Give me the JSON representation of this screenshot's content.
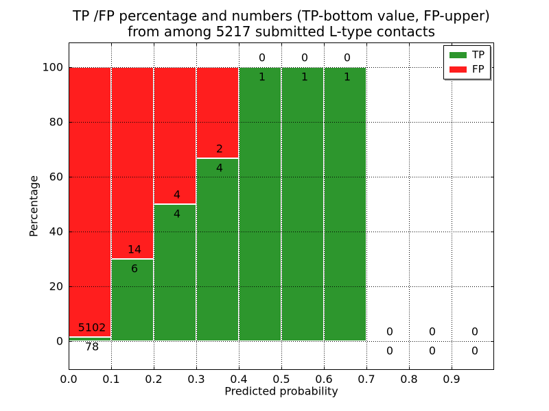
{
  "chart_data": {
    "type": "bar",
    "title_line1": "TP /FP percentage and numbers (TP-bottom value, FP-upper)",
    "title_line2": "from among 5217 submitted L-type contacts",
    "xlabel": "Predicted probability",
    "ylabel": "Percentage",
    "total_contacts": 5217,
    "xlim": [
      0.0,
      1.0
    ],
    "ylim": [
      -10.5,
      109
    ],
    "x_tick_labels": [
      "0.0",
      "0.1",
      "0.2",
      "0.3",
      "0.4",
      "0.5",
      "0.6",
      "0.7",
      "0.8",
      "0.9"
    ],
    "y_tick_values": [
      0,
      20,
      40,
      60,
      80,
      100
    ],
    "y_tick_labels": [
      "0",
      "20",
      "40",
      "60",
      "80",
      "100"
    ],
    "grid": "dotted",
    "stacking": "percentage, TP bottom (green), FP upper (red); labels are counts: FP above boundary, TP below",
    "bins": [
      {
        "x0": 0.0,
        "x1": 0.1,
        "tp": 78,
        "fp": 5102,
        "tp_pct": 1.51
      },
      {
        "x0": 0.1,
        "x1": 0.2,
        "tp": 6,
        "fp": 14,
        "tp_pct": 30.0
      },
      {
        "x0": 0.2,
        "x1": 0.3,
        "tp": 4,
        "fp": 4,
        "tp_pct": 50.0
      },
      {
        "x0": 0.3,
        "x1": 0.4,
        "tp": 4,
        "fp": 2,
        "tp_pct": 66.7
      },
      {
        "x0": 0.4,
        "x1": 0.5,
        "tp": 1,
        "fp": 0,
        "tp_pct": 100.0
      },
      {
        "x0": 0.5,
        "x1": 0.6,
        "tp": 1,
        "fp": 0,
        "tp_pct": 100.0
      },
      {
        "x0": 0.6,
        "x1": 0.7,
        "tp": 1,
        "fp": 0,
        "tp_pct": 100.0
      },
      {
        "x0": 0.7,
        "x1": 0.8,
        "tp": 0,
        "fp": 0,
        "tp_pct": null
      },
      {
        "x0": 0.8,
        "x1": 0.9,
        "tp": 0,
        "fp": 0,
        "tp_pct": null
      },
      {
        "x0": 0.9,
        "x1": 1.0,
        "tp": 0,
        "fp": 0,
        "tp_pct": null
      }
    ],
    "legend": {
      "position": "upper right",
      "items": [
        {
          "label": "TP",
          "color": "#2d962d"
        },
        {
          "label": "FP",
          "color": "#ff1e1e"
        }
      ]
    },
    "colors": {
      "tp": "#2d962d",
      "fp": "#ff1e1e",
      "bar_edge": "#ffffff",
      "grid": "#000000",
      "frame": "#000000",
      "background": "#ffffff"
    }
  }
}
